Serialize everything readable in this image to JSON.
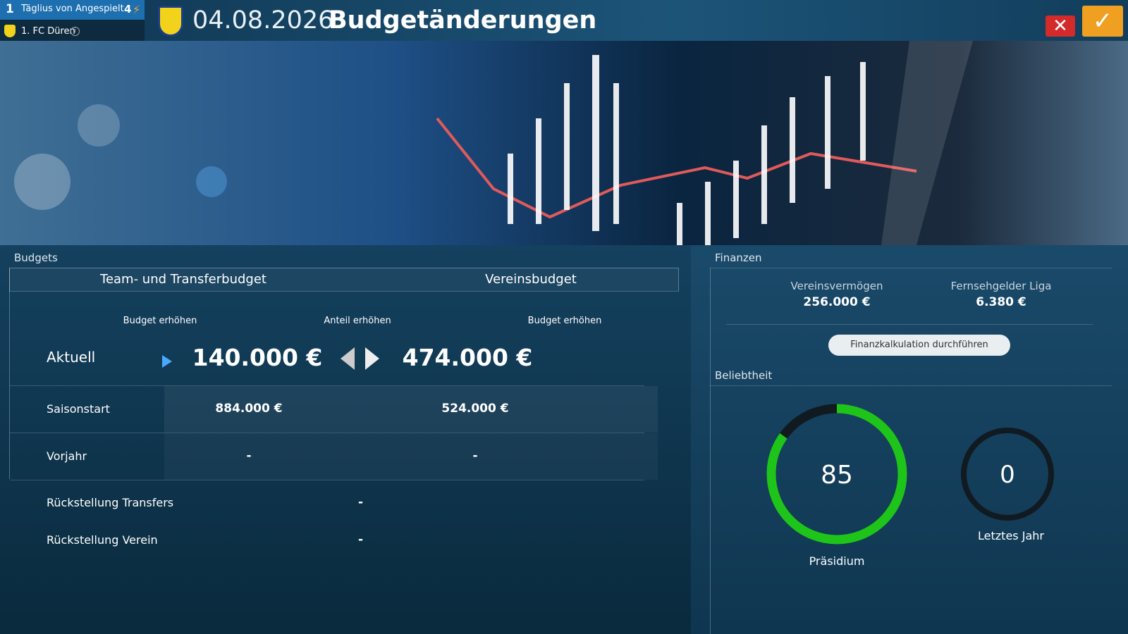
{
  "header": {
    "rank": "1",
    "manager": "Täglius von Angespielt",
    "level": "4",
    "club": "1. FC Düren",
    "date": "04.08.2026",
    "title": "Budgetänderungen"
  },
  "budgets": {
    "title": "Budgets",
    "tabs": [
      "Team- und Transferbudget",
      "Vereinsbudget"
    ],
    "actions": [
      "Budget erhöhen",
      "Anteil erhöhen",
      "Budget erhöhen"
    ],
    "rows": [
      [
        "Aktuell",
        "140.000 €",
        "474.000 €"
      ],
      [
        "Saisonstart",
        "884.000 €",
        "524.000 €"
      ],
      [
        "Vorjahr",
        "-",
        "-"
      ]
    ],
    "reserves": [
      [
        "Rückstellung Transfers",
        "-"
      ],
      [
        "Rückstellung Verein",
        "-"
      ]
    ]
  },
  "finances": {
    "title": "Finanzen",
    "items": [
      {
        "label": "Vereinsvermögen",
        "value": "256.000 €"
      },
      {
        "label": "Fernsehgelder Liga",
        "value": "6.380 €"
      }
    ],
    "button": "Finanzkalkulation durchführen"
  },
  "popularity": {
    "title": "Beliebtheit",
    "gauges": [
      {
        "label": "Präsidium",
        "value": 85
      },
      {
        "label": "Letztes Jahr",
        "value": 0
      }
    ]
  }
}
